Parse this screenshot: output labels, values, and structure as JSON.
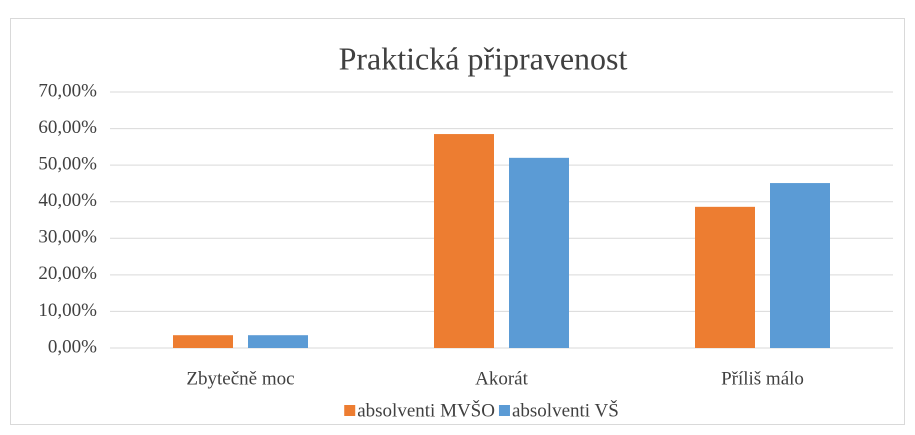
{
  "chart_data": {
    "type": "bar",
    "title": "Praktická připravenost",
    "categories": [
      "Zbytečně moc",
      "Akorát",
      "Příliš málo"
    ],
    "series": [
      {
        "name": "absolventi MVŠO",
        "color": "#ED7D31",
        "values": [
          3.5,
          58.5,
          38.6
        ]
      },
      {
        "name": "absolventi VŠ",
        "color": "#5B9BD5",
        "values": [
          3.5,
          52.0,
          45.1
        ]
      }
    ],
    "ylim": [
      0,
      70
    ],
    "yticks": [
      {
        "value": 0,
        "label": "0,00%"
      },
      {
        "value": 10,
        "label": "10,00%"
      },
      {
        "value": 20,
        "label": "20,00%"
      },
      {
        "value": 30,
        "label": "30,00%"
      },
      {
        "value": 40,
        "label": "40,00%"
      },
      {
        "value": 50,
        "label": "50,00%"
      },
      {
        "value": 60,
        "label": "60,00%"
      },
      {
        "value": 70,
        "label": "70,00%"
      }
    ],
    "grid": true,
    "legend": "bottom"
  }
}
